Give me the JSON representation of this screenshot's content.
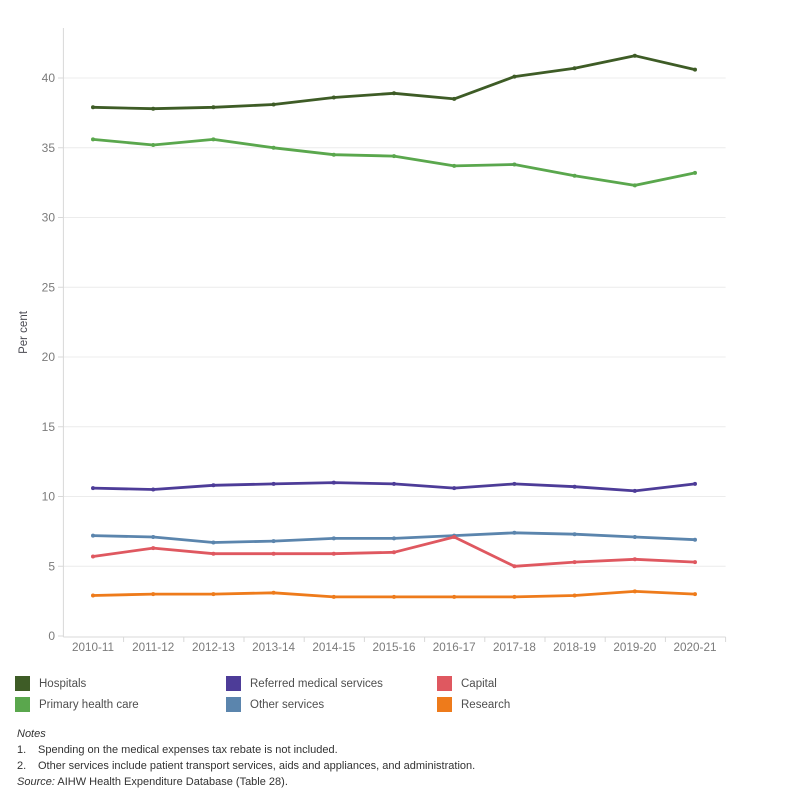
{
  "chart_data": {
    "type": "line",
    "title": "",
    "xlabel": "",
    "ylabel": "Per cent",
    "ylim": [
      0,
      40
    ],
    "ytick_step": 5,
    "grid": "horizontal",
    "legend_position": "bottom-left",
    "categories": [
      "2010-11",
      "2011-12",
      "2012-13",
      "2013-14",
      "2014-15",
      "2015-16",
      "2016-17",
      "2017-18",
      "2018-19",
      "2019-20",
      "2020-21"
    ],
    "series": [
      {
        "name": "Hospitals",
        "color": "#3e5c26",
        "values": [
          37.9,
          37.8,
          37.9,
          38.1,
          38.6,
          38.9,
          38.5,
          40.1,
          40.7,
          41.6,
          40.6
        ]
      },
      {
        "name": "Primary health care",
        "color": "#5aa74d",
        "values": [
          35.6,
          35.2,
          35.6,
          35.0,
          34.5,
          34.4,
          33.7,
          33.8,
          33.0,
          32.3,
          33.2
        ]
      },
      {
        "name": "Referred medical services",
        "color": "#4d3c98",
        "values": [
          10.6,
          10.5,
          10.8,
          10.9,
          11.0,
          10.9,
          10.6,
          10.9,
          10.7,
          10.4,
          10.9
        ]
      },
      {
        "name": "Other services",
        "color": "#5b85ad",
        "values": [
          7.2,
          7.1,
          6.7,
          6.8,
          7.0,
          7.0,
          7.2,
          7.4,
          7.3,
          7.1,
          6.9
        ]
      },
      {
        "name": "Capital",
        "color": "#df5860",
        "values": [
          5.7,
          6.3,
          5.9,
          5.9,
          5.9,
          6.0,
          7.1,
          5.0,
          5.3,
          5.5,
          5.3
        ]
      },
      {
        "name": "Research",
        "color": "#ee7b1b",
        "values": [
          2.9,
          3.0,
          3.0,
          3.1,
          2.8,
          2.8,
          2.8,
          2.8,
          2.9,
          3.2,
          3.0
        ]
      }
    ],
    "axis_colors": {
      "tick_label": "#7b7b7b",
      "axis_line": "#d8d8d8",
      "gridline": "#ececec",
      "axis_title": "#4a4a52"
    }
  },
  "notes": {
    "heading": "Notes",
    "items": [
      {
        "num": "1.",
        "text": "Spending on the medical expenses tax rebate is not included."
      },
      {
        "num": "2.",
        "text": "Other services include patient transport services, aids and appliances, and administration."
      }
    ],
    "source_label": "Source:",
    "source_text": " AIHW Health Expenditure Database (Table 28)."
  }
}
